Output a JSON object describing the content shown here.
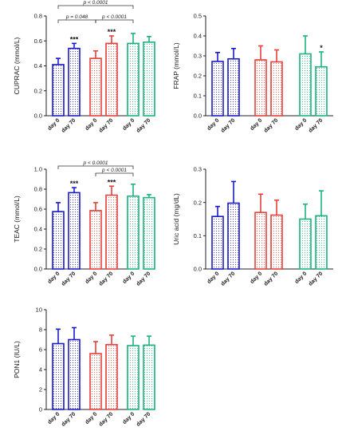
{
  "chart_data": [
    {
      "type": "bar",
      "ylabel": "CUPRAC (mmol/L)",
      "ylim": [
        0,
        0.8
      ],
      "yticks": [
        "0.0",
        "0.2",
        "0.4",
        "0.6",
        "0.8"
      ],
      "categories": [
        "day 0",
        "day 70",
        "day 0",
        "day 70",
        "day 0",
        "day 70"
      ],
      "values": [
        0.41,
        0.54,
        0.46,
        0.58,
        0.58,
        0.59
      ],
      "errors": [
        0.05,
        0.04,
        0.06,
        0.06,
        0.08,
        0.045
      ],
      "groups": [
        0,
        0,
        1,
        1,
        2,
        2
      ],
      "significance": [
        "",
        "***",
        "",
        "***",
        "",
        ""
      ],
      "brackets": [
        {
          "from": 0,
          "to": 4,
          "level": 3,
          "label": "p < 0.0001"
        },
        {
          "from": 0,
          "to": 2,
          "level": 1,
          "label": "p = 0.048"
        },
        {
          "from": 2,
          "to": 4,
          "level": 1,
          "label": "p < 0.0001"
        }
      ]
    },
    {
      "type": "bar",
      "ylabel": "FRAP (mmol/L)",
      "ylim": [
        0,
        0.5
      ],
      "yticks": [
        "0.0",
        "0.1",
        "0.2",
        "0.3",
        "0.4",
        "0.5"
      ],
      "categories": [
        "day 0",
        "day 70",
        "day 0",
        "day 70",
        "day 0",
        "day 70"
      ],
      "values": [
        0.272,
        0.285,
        0.28,
        0.27,
        0.31,
        0.245
      ],
      "errors": [
        0.045,
        0.052,
        0.07,
        0.06,
        0.09,
        0.075
      ],
      "groups": [
        0,
        0,
        1,
        1,
        2,
        2
      ],
      "significance": [
        "",
        "",
        "",
        "",
        "",
        "*"
      ],
      "brackets": []
    },
    {
      "type": "bar",
      "ylabel": "TEAC (mmol/L)",
      "ylim": [
        0,
        1.0
      ],
      "yticks": [
        "0.0",
        "0.2",
        "0.4",
        "0.6",
        "0.8",
        "1.0"
      ],
      "categories": [
        "day 0",
        "day 70",
        "day 0",
        "day 70",
        "day 0",
        "day 70"
      ],
      "values": [
        0.575,
        0.765,
        0.585,
        0.74,
        0.73,
        0.715
      ],
      "errors": [
        0.09,
        0.05,
        0.08,
        0.09,
        0.12,
        0.03
      ],
      "groups": [
        0,
        0,
        1,
        1,
        2,
        2
      ],
      "significance": [
        "",
        "***",
        "",
        "***",
        "",
        ""
      ],
      "brackets": [
        {
          "from": 0,
          "to": 4,
          "level": 2,
          "label": "p < 0.0001"
        },
        {
          "from": 2,
          "to": 4,
          "level": 1,
          "label": "p < 0.0001"
        }
      ]
    },
    {
      "type": "bar",
      "ylabel": "Uric acid (mg/dL)",
      "ylim": [
        0,
        0.3
      ],
      "yticks": [
        "0.0",
        "0.1",
        "0.2",
        "0.3"
      ],
      "categories": [
        "day 0",
        "day 70",
        "day 0",
        "day 70",
        "day 0",
        "day 70"
      ],
      "values": [
        0.158,
        0.198,
        0.17,
        0.162,
        0.15,
        0.16
      ],
      "errors": [
        0.03,
        0.065,
        0.055,
        0.045,
        0.045,
        0.075
      ],
      "groups": [
        0,
        0,
        1,
        1,
        2,
        2
      ],
      "significance": [
        "",
        "",
        "",
        "",
        "",
        ""
      ],
      "brackets": []
    },
    {
      "type": "bar",
      "ylabel": "PON1 (IU/L)",
      "ylim": [
        0,
        10
      ],
      "yticks": [
        "0",
        "2",
        "4",
        "6",
        "8",
        "10"
      ],
      "categories": [
        "day 0",
        "day 70",
        "day 0",
        "day 70",
        "day 0",
        "day 70"
      ],
      "values": [
        6.6,
        7.0,
        5.6,
        6.5,
        6.4,
        6.45
      ],
      "errors": [
        1.45,
        1.2,
        1.2,
        0.95,
        0.95,
        0.9
      ],
      "groups": [
        0,
        0,
        1,
        1,
        2,
        2
      ],
      "significance": [
        "",
        "",
        "",
        "",
        "",
        ""
      ],
      "brackets": []
    }
  ],
  "group_colors": [
    "#1a1ac8",
    "#e8403a",
    "#1cb47c"
  ]
}
